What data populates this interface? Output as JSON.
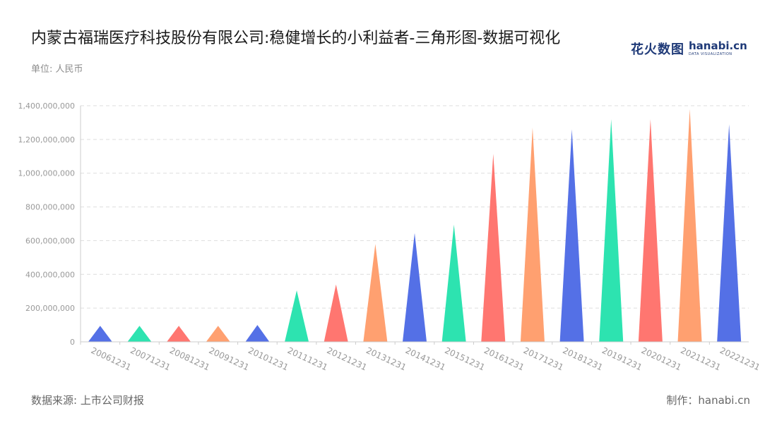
{
  "title": "内蒙古福瑞医疗科技股份有限公司:稳健增长的小利益者-三角形图-数据可视化",
  "unit_label": "单位: 人民币",
  "logo": {
    "cn": "花火数图",
    "en": "hanabi.cn",
    "en_sub": "DATA VISUALIZATION"
  },
  "footer": {
    "source": "数据来源: 上市公司财报",
    "credit": "制作：hanabi.cn"
  },
  "colors": {
    "palette": [
      "#5470e6",
      "#2de3b0",
      "#ff7670",
      "#ffa070"
    ],
    "grid": "#dddddd",
    "axis": "#cccccc"
  },
  "chart_data": {
    "type": "bar",
    "mark": "triangle",
    "categories": [
      "20061231",
      "20071231",
      "20081231",
      "20091231",
      "20101231",
      "20111231",
      "20121231",
      "20131231",
      "20141231",
      "20151231",
      "20161231",
      "20171231",
      "20181231",
      "20191231",
      "20201231",
      "20211231",
      "20221231"
    ],
    "values": [
      95000000,
      95000000,
      95000000,
      95000000,
      100000000,
      305000000,
      340000000,
      580000000,
      645000000,
      695000000,
      1115000000,
      1270000000,
      1260000000,
      1320000000,
      1320000000,
      1380000000,
      1290000000
    ],
    "yticks": [
      "0",
      "200,000,000",
      "400,000,000",
      "600,000,000",
      "800,000,000",
      "1,000,000,000",
      "1,200,000,000",
      "1,400,000,000"
    ],
    "ylim": [
      0,
      1400000000
    ],
    "grid": true
  }
}
